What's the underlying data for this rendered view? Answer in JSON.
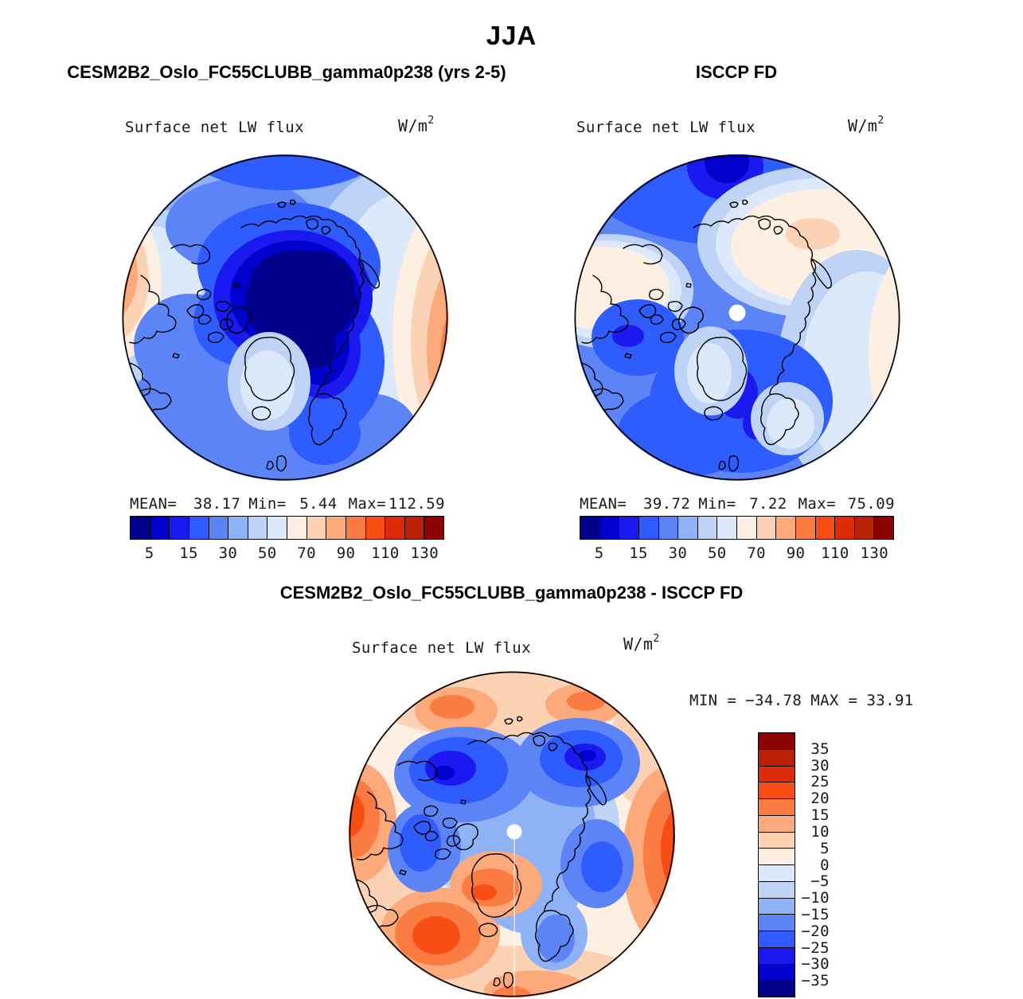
{
  "header": {
    "season": "JJA"
  },
  "panels": {
    "model": {
      "title": "CESM2B2_Oslo_FC55CLUBB_gamma0p238 (yrs 2-5)",
      "field_label": "Surface net LW flux",
      "units_base": "W/m",
      "units_exp": "2",
      "stats": {
        "mean_label": "MEAN=",
        "mean": "38.17",
        "min_label": "Min=",
        "min": "5.44",
        "max_label": "Max=",
        "max": "112.59"
      },
      "colorbar_ticks": [
        "5",
        "15",
        "30",
        "50",
        "70",
        "90",
        "110",
        "130"
      ]
    },
    "obs": {
      "title": "ISCCP FD",
      "field_label": "Surface net LW flux",
      "units_base": "W/m",
      "units_exp": "2",
      "stats": {
        "mean_label": "MEAN=",
        "mean": "39.72",
        "min_label": "Min=",
        "min": "7.22",
        "max_label": "Max=",
        "max": "75.09"
      },
      "colorbar_ticks": [
        "5",
        "15",
        "30",
        "50",
        "70",
        "90",
        "110",
        "130"
      ]
    },
    "diff": {
      "title": "CESM2B2_Oslo_FC55CLUBB_gamma0p238 - ISCCP FD",
      "field_label": "Surface net LW flux",
      "units_base": "W/m",
      "units_exp": "2",
      "stats": {
        "min_label": "MIN =",
        "min": "−34.78",
        "max_label": "MAX =",
        "max": "33.91"
      },
      "colorbar_ticks": [
        "35",
        "30",
        "25",
        "20",
        "15",
        "10",
        "5",
        "0",
        "−5",
        "−10",
        "−15",
        "−20",
        "−25",
        "−30",
        "−35"
      ]
    }
  },
  "colors": {
    "palette_blue_to_red": [
      "#00008B",
      "#0000CD",
      "#1A1AF0",
      "#2E5CFF",
      "#5C84F7",
      "#8FB2F7",
      "#BFD3F7",
      "#DCE9FA",
      "#FDF0E2",
      "#FCD2B4",
      "#FCA97C",
      "#FB7C42",
      "#F84E16",
      "#DE2A0B",
      "#BA2208",
      "#8B0000"
    ],
    "coastline": "#000000",
    "missing_data_dot": "#FFFFFF",
    "background": "#FFFFFF"
  },
  "chart_data": [
    {
      "type": "heatmap",
      "subtype": "filled-contour-polar-map",
      "projection": "north-polar-stereographic",
      "season": "JJA",
      "title": "CESM2B2_Oslo_FC55CLUBB_gamma0p238 (yrs 2-5)",
      "variable": "Surface net LW flux",
      "units": "W/m^2",
      "mean": 38.17,
      "min": 5.44,
      "max": 112.59,
      "colorbar_tick_values": [
        5,
        15,
        30,
        50,
        70,
        90,
        110,
        130
      ],
      "colorbar_orientation": "horizontal",
      "n_color_bins": 16,
      "legend_position": "below-map"
    },
    {
      "type": "heatmap",
      "subtype": "filled-contour-polar-map",
      "projection": "north-polar-stereographic",
      "season": "JJA",
      "title": "ISCCP FD",
      "variable": "Surface net LW flux",
      "units": "W/m^2",
      "mean": 39.72,
      "min": 7.22,
      "max": 75.09,
      "colorbar_tick_values": [
        5,
        15,
        30,
        50,
        70,
        90,
        110,
        130
      ],
      "colorbar_orientation": "horizontal",
      "n_color_bins": 16,
      "legend_position": "below-map"
    },
    {
      "type": "heatmap",
      "subtype": "filled-contour-polar-map",
      "projection": "north-polar-stereographic",
      "season": "JJA",
      "title": "CESM2B2_Oslo_FC55CLUBB_gamma0p238 - ISCCP FD",
      "variable": "Surface net LW flux",
      "units": "W/m^2",
      "min": -34.78,
      "max": 33.91,
      "colorbar_tick_values": [
        35,
        30,
        25,
        20,
        15,
        10,
        5,
        0,
        -5,
        -10,
        -15,
        -20,
        -25,
        -30,
        -35
      ],
      "colorbar_orientation": "vertical",
      "n_color_bins": 16,
      "legend_position": "right-of-map"
    }
  ]
}
